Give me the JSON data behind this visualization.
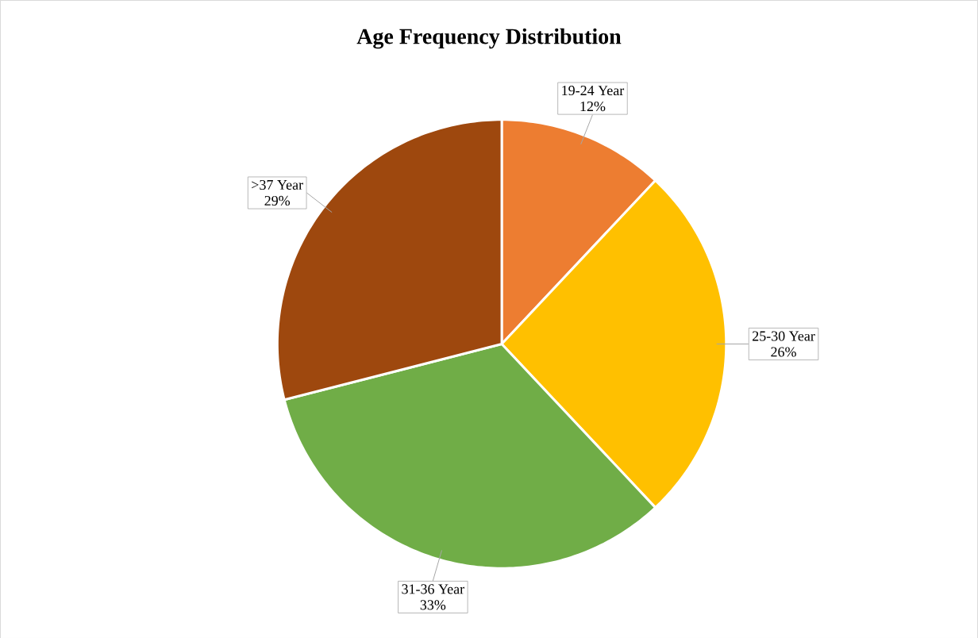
{
  "chart_data": {
    "type": "pie",
    "title": "Age Frequency Distribution",
    "categories": [
      "19-24 Year",
      "25-30 Year",
      "31-36 Year",
      ">37 Year"
    ],
    "values": [
      12,
      26,
      33,
      29
    ],
    "value_labels": [
      "12%",
      "26%",
      "33%",
      "29%"
    ],
    "colors": [
      "#ed7d31",
      "#ffc000",
      "#70ad47",
      "#9e480e"
    ]
  }
}
